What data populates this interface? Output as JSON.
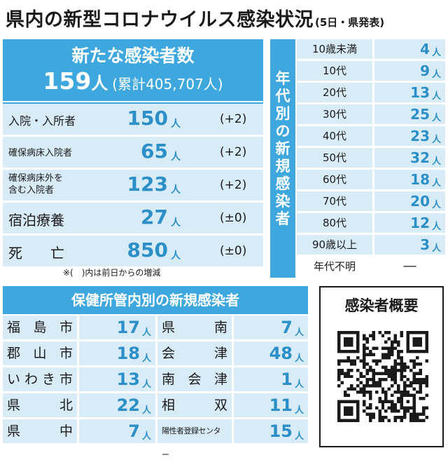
{
  "title": {
    "main": "県内の新型コロナウイルス感染状況",
    "sub": "(5日・県発表)"
  },
  "summary": {
    "header": "新たな感染者数",
    "new_cases": "159",
    "new_unit": "人",
    "cumulative": "(累計405,707人)",
    "rows": [
      {
        "label": "入院・入所者",
        "value": "150",
        "unit": "人",
        "change": "(+2)"
      },
      {
        "label": "確保病床入院者",
        "value": "65",
        "unit": "人",
        "change": "(+2)"
      },
      {
        "label_line1": "確保病床外を",
        "label_line2": "含む入院者",
        "value": "123",
        "unit": "人",
        "change": "(+2)"
      },
      {
        "label": "宿泊療養",
        "value": "27",
        "unit": "人",
        "change": "(±0)"
      },
      {
        "label": "死　　亡",
        "value": "850",
        "unit": "人",
        "change": "(±0)"
      }
    ],
    "note": "※(　)内は前日からの増減"
  },
  "age": {
    "side_title": "年代別の新規感染者",
    "rows": [
      {
        "label": "10歳未満",
        "value": "4",
        "unit": "人"
      },
      {
        "label": "10代",
        "value": "9",
        "unit": "人"
      },
      {
        "label": "20代",
        "value": "13",
        "unit": "人"
      },
      {
        "label": "30代",
        "value": "25",
        "unit": "人"
      },
      {
        "label": "40代",
        "value": "23",
        "unit": "人"
      },
      {
        "label": "50代",
        "value": "32",
        "unit": "人"
      },
      {
        "label": "60代",
        "value": "18",
        "unit": "人"
      },
      {
        "label": "70代",
        "value": "20",
        "unit": "人"
      },
      {
        "label": "80代",
        "value": "12",
        "unit": "人"
      },
      {
        "label": "90歳以上",
        "value": "3",
        "unit": "人"
      },
      {
        "label": "年代不明",
        "value": "―",
        "unit": ""
      }
    ]
  },
  "health_centers": {
    "header": "保健所管内別の新規感染者",
    "rows": [
      {
        "left": {
          "name": "福島市",
          "value": "17",
          "unit": "人"
        },
        "right": {
          "name": "県南",
          "value": "7",
          "unit": "人"
        }
      },
      {
        "left": {
          "name": "郡山市",
          "value": "18",
          "unit": "人"
        },
        "right": {
          "name": "会津",
          "value": "48",
          "unit": "人"
        }
      },
      {
        "left": {
          "name": "いわき市",
          "value": "13",
          "unit": "人"
        },
        "right": {
          "name": "南会津",
          "value": "1",
          "unit": "人"
        }
      },
      {
        "left": {
          "name": "県北",
          "value": "22",
          "unit": "人"
        },
        "right": {
          "name": "相双",
          "value": "11",
          "unit": "人"
        }
      },
      {
        "left": {
          "name": "県中",
          "value": "7",
          "unit": "人"
        },
        "right": {
          "name": "陽性者登録センター",
          "value": "15",
          "unit": "人"
        }
      }
    ]
  },
  "overview": {
    "title": "感染者概要",
    "qr_icon": "qr-code-icon"
  },
  "colors": {
    "accent": "#3ea8de",
    "light": "#d8ecf8",
    "number": "#2c8fc8"
  }
}
